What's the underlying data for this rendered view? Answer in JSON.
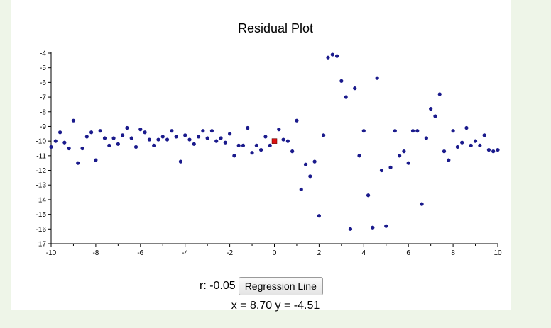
{
  "chart_data": {
    "type": "scatter",
    "title": "Residual Plot",
    "xlabel": "",
    "ylabel": "",
    "xlim": [
      -10,
      10
    ],
    "ylim": [
      -17,
      -4
    ],
    "x_ticks": [
      -10,
      -8,
      -6,
      -4,
      -2,
      0,
      2,
      4,
      6,
      8,
      10
    ],
    "y_ticks": [
      -4,
      -5,
      -6,
      -7,
      -8,
      -9,
      -10,
      -11,
      -12,
      -13,
      -14,
      -15,
      -16,
      -17
    ],
    "grid": false,
    "point_color": "#1a1a8c",
    "highlight_color": "#dd1111",
    "highlight_point": [
      0,
      -10
    ],
    "points": [
      [
        -10,
        -10.4
      ],
      [
        -9.8,
        -10.0
      ],
      [
        -9.6,
        -9.4
      ],
      [
        -9.4,
        -10.1
      ],
      [
        -9.2,
        -10.5
      ],
      [
        -9.0,
        -8.6
      ],
      [
        -8.8,
        -11.5
      ],
      [
        -8.6,
        -10.5
      ],
      [
        -8.4,
        -9.7
      ],
      [
        -8.2,
        -9.4
      ],
      [
        -8.0,
        -11.3
      ],
      [
        -7.8,
        -9.3
      ],
      [
        -7.6,
        -9.8
      ],
      [
        -7.4,
        -10.3
      ],
      [
        -7.2,
        -9.8
      ],
      [
        -7.0,
        -10.2
      ],
      [
        -6.8,
        -9.6
      ],
      [
        -6.6,
        -9.1
      ],
      [
        -6.4,
        -9.8
      ],
      [
        -6.2,
        -10.4
      ],
      [
        -6.0,
        -9.2
      ],
      [
        -5.8,
        -9.4
      ],
      [
        -5.6,
        -9.9
      ],
      [
        -5.4,
        -10.3
      ],
      [
        -5.2,
        -9.9
      ],
      [
        -5.0,
        -9.7
      ],
      [
        -4.8,
        -9.9
      ],
      [
        -4.6,
        -9.3
      ],
      [
        -4.4,
        -9.7
      ],
      [
        -4.2,
        -11.4
      ],
      [
        -4.0,
        -9.6
      ],
      [
        -3.8,
        -9.9
      ],
      [
        -3.6,
        -10.2
      ],
      [
        -3.4,
        -9.7
      ],
      [
        -3.2,
        -9.3
      ],
      [
        -3.0,
        -9.8
      ],
      [
        -2.8,
        -9.3
      ],
      [
        -2.6,
        -10.0
      ],
      [
        -2.4,
        -9.8
      ],
      [
        -2.2,
        -10.1
      ],
      [
        -2.0,
        -9.5
      ],
      [
        -1.8,
        -11.0
      ],
      [
        -1.6,
        -10.3
      ],
      [
        -1.4,
        -10.3
      ],
      [
        -1.2,
        -9.1
      ],
      [
        -1.0,
        -10.8
      ],
      [
        -0.8,
        -10.3
      ],
      [
        -0.6,
        -10.6
      ],
      [
        -0.4,
        -9.7
      ],
      [
        -0.2,
        -10.3
      ],
      [
        0.2,
        -9.2
      ],
      [
        0.4,
        -9.9
      ],
      [
        0.6,
        -10.0
      ],
      [
        0.8,
        -10.7
      ],
      [
        1.0,
        -8.6
      ],
      [
        1.2,
        -13.3
      ],
      [
        1.4,
        -11.6
      ],
      [
        1.6,
        -12.4
      ],
      [
        1.8,
        -11.4
      ],
      [
        2.0,
        -15.1
      ],
      [
        2.2,
        -9.6
      ],
      [
        2.4,
        -4.3
      ],
      [
        2.6,
        -4.1
      ],
      [
        2.8,
        -4.2
      ],
      [
        3.0,
        -5.9
      ],
      [
        3.2,
        -7.0
      ],
      [
        3.4,
        -16.0
      ],
      [
        3.6,
        -6.4
      ],
      [
        3.8,
        -11.0
      ],
      [
        4.0,
        -9.3
      ],
      [
        4.2,
        -13.7
      ],
      [
        4.4,
        -15.9
      ],
      [
        4.6,
        -5.7
      ],
      [
        4.8,
        -12.0
      ],
      [
        5.0,
        -15.8
      ],
      [
        5.2,
        -11.8
      ],
      [
        5.4,
        -9.3
      ],
      [
        5.6,
        -11.0
      ],
      [
        5.8,
        -10.7
      ],
      [
        6.0,
        -11.5
      ],
      [
        6.2,
        -9.3
      ],
      [
        6.4,
        -9.3
      ],
      [
        6.6,
        -14.3
      ],
      [
        6.8,
        -9.8
      ],
      [
        7.0,
        -7.8
      ],
      [
        7.2,
        -8.3
      ],
      [
        7.4,
        -6.8
      ],
      [
        7.6,
        -10.7
      ],
      [
        7.8,
        -11.3
      ],
      [
        8.0,
        -9.3
      ],
      [
        8.2,
        -10.4
      ],
      [
        8.4,
        -10.1
      ],
      [
        8.6,
        -9.1
      ],
      [
        8.8,
        -10.3
      ],
      [
        9.0,
        -10.0
      ],
      [
        9.2,
        -10.3
      ],
      [
        9.4,
        -9.6
      ],
      [
        9.6,
        -10.6
      ],
      [
        9.8,
        -10.7
      ],
      [
        10.0,
        -10.6
      ]
    ]
  },
  "controls": {
    "r_text": "r: -0.05",
    "button_label": "Regression Line",
    "coords_text": "x = 8.70 y = -4.51"
  }
}
